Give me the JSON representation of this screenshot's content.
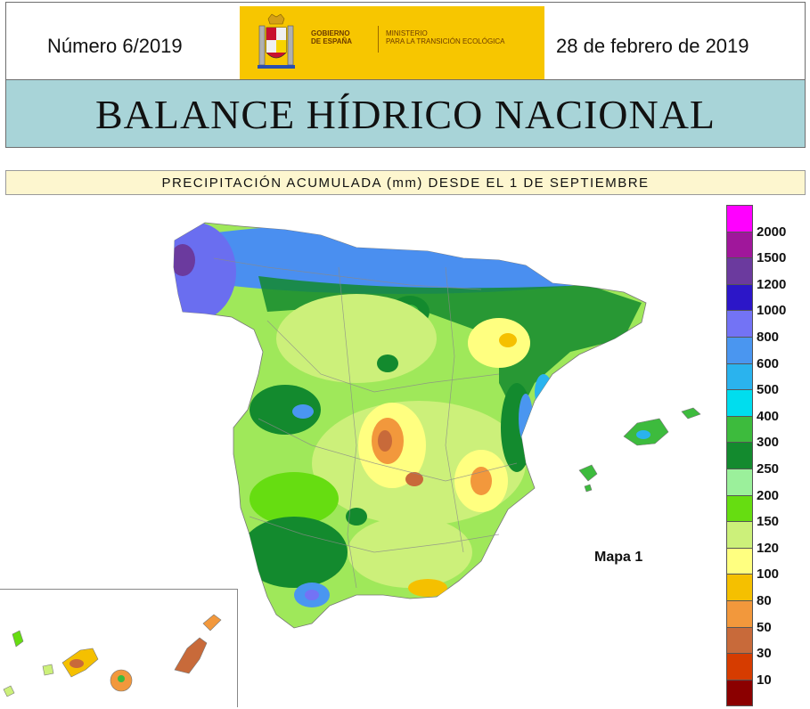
{
  "header": {
    "issue": "Número 6/2019",
    "date": "28 de febrero de 2019",
    "logo": {
      "gov_line1": "GOBIERNO",
      "gov_line2": "DE ESPAÑA",
      "min_line1": "MINISTERIO",
      "min_line2": "PARA LA TRANSICIÓN ECOLÓGICA"
    }
  },
  "title": "BALANCE HÍDRICO NACIONAL",
  "subtitle": "PRECIPITACIÓN ACUMULADA (mm) DESDE EL 1 DE SEPTIEMBRE",
  "map": {
    "label": "Mapa 1",
    "regions": [
      "Península",
      "Baleares",
      "Canarias"
    ]
  },
  "legend": {
    "items": [
      {
        "label": "2000",
        "color": "#ff00ff"
      },
      {
        "label": "1500",
        "color": "#a0179b"
      },
      {
        "label": "1200",
        "color": "#6b3a9e"
      },
      {
        "label": "1000",
        "color": "#2c16c8"
      },
      {
        "label": "800",
        "color": "#7373f5"
      },
      {
        "label": "600",
        "color": "#4a96f0"
      },
      {
        "label": "500",
        "color": "#2ab3ee"
      },
      {
        "label": "400",
        "color": "#00ddee"
      },
      {
        "label": "300",
        "color": "#3dbb3d"
      },
      {
        "label": "250",
        "color": "#138a2e"
      },
      {
        "label": "200",
        "color": "#9bf09b"
      },
      {
        "label": "150",
        "color": "#66dd11"
      },
      {
        "label": "120",
        "color": "#ccf07a"
      },
      {
        "label": "100",
        "color": "#ffff80"
      },
      {
        "label": "80",
        "color": "#f5c000"
      },
      {
        "label": "50",
        "color": "#f2983c"
      },
      {
        "label": "30",
        "color": "#c86a3a"
      },
      {
        "label": "10",
        "color": "#d63c00"
      },
      {
        "label": "",
        "color": "#8b0000"
      }
    ]
  }
}
